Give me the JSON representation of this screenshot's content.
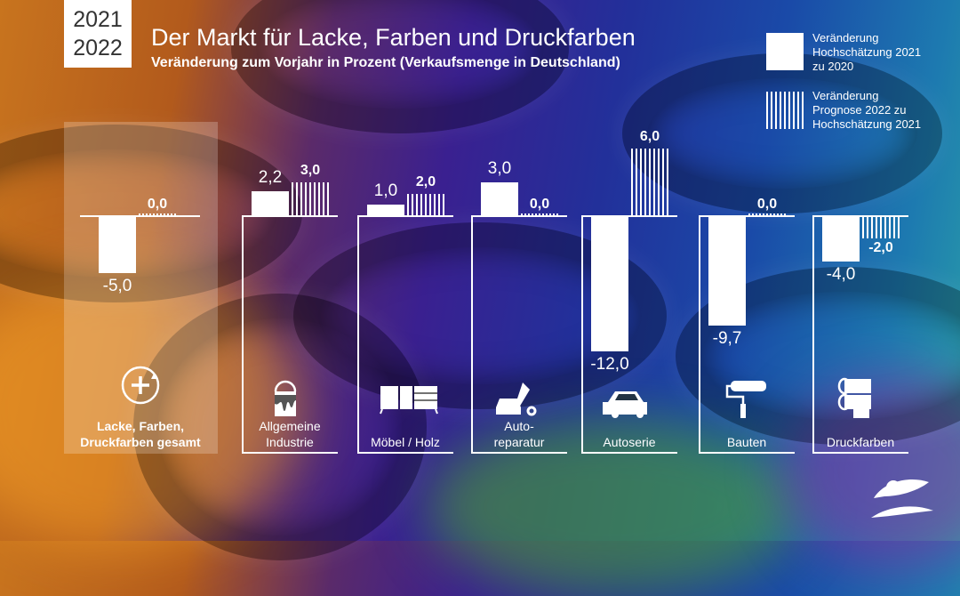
{
  "header": {
    "years": [
      "2021",
      "2022"
    ],
    "title": "Der Markt für Lacke, Farben und Druckfarben",
    "subtitle": "Veränderung zum Vorjahr in Prozent (Verkaufsmenge in Deutschland)"
  },
  "legend": [
    {
      "label_lines": [
        "Veränderung",
        "Hochschätzung 2021",
        "zu 2020"
      ],
      "style": "solid"
    },
    {
      "label_lines": [
        "Veränderung",
        "Prognose 2022 zu",
        "Hochschätzung 2021"
      ],
      "style": "hatched"
    }
  ],
  "colors": {
    "bars": "#ffffff",
    "year_box_text": "#333333"
  },
  "chart_data": {
    "type": "bar",
    "categories": [
      "Lacke, Farben, Druckfarben gesamt",
      "Allgemeine Industrie",
      "Möbel / Holz",
      "Autoreparatur",
      "Autoserie",
      "Bauten",
      "Druckfarben"
    ],
    "category_label_lines": [
      [
        "Lacke, Farben,",
        "Druckfarben gesamt"
      ],
      [
        "Allgemeine",
        "Industrie"
      ],
      [
        "Möbel / Holz"
      ],
      [
        "Auto-",
        "reparatur"
      ],
      [
        "Autoserie"
      ],
      [
        "Bauten"
      ],
      [
        "Druckfarben"
      ]
    ],
    "category_icons": [
      "plus-circle-icon",
      "paint-bucket-icon",
      "furniture-icon",
      "car-wrench-icon",
      "car-icon",
      "paint-roller-icon",
      "printing-rollers-icon"
    ],
    "series": [
      {
        "name": "Veränderung Hochschätzung 2021 zu 2020",
        "style": "solid",
        "values": [
          -5.0,
          2.2,
          1.0,
          3.0,
          -12.0,
          -9.7,
          -4.0
        ],
        "labels": [
          "-5,0",
          "2,2",
          "1,0",
          "3,0",
          "-12,0",
          "-9,7",
          "-4,0"
        ]
      },
      {
        "name": "Veränderung Prognose 2022 zu Hochschätzung 2021",
        "style": "hatched",
        "values": [
          0.0,
          3.0,
          2.0,
          0.0,
          6.0,
          0.0,
          -2.0
        ],
        "labels": [
          "0,0",
          "3,0",
          "2,0",
          "0,0",
          "6,0",
          "0,0",
          "-2,0"
        ]
      }
    ],
    "unit": "%",
    "highlighted_category": "Lacke, Farben, Druckfarben gesamt"
  }
}
